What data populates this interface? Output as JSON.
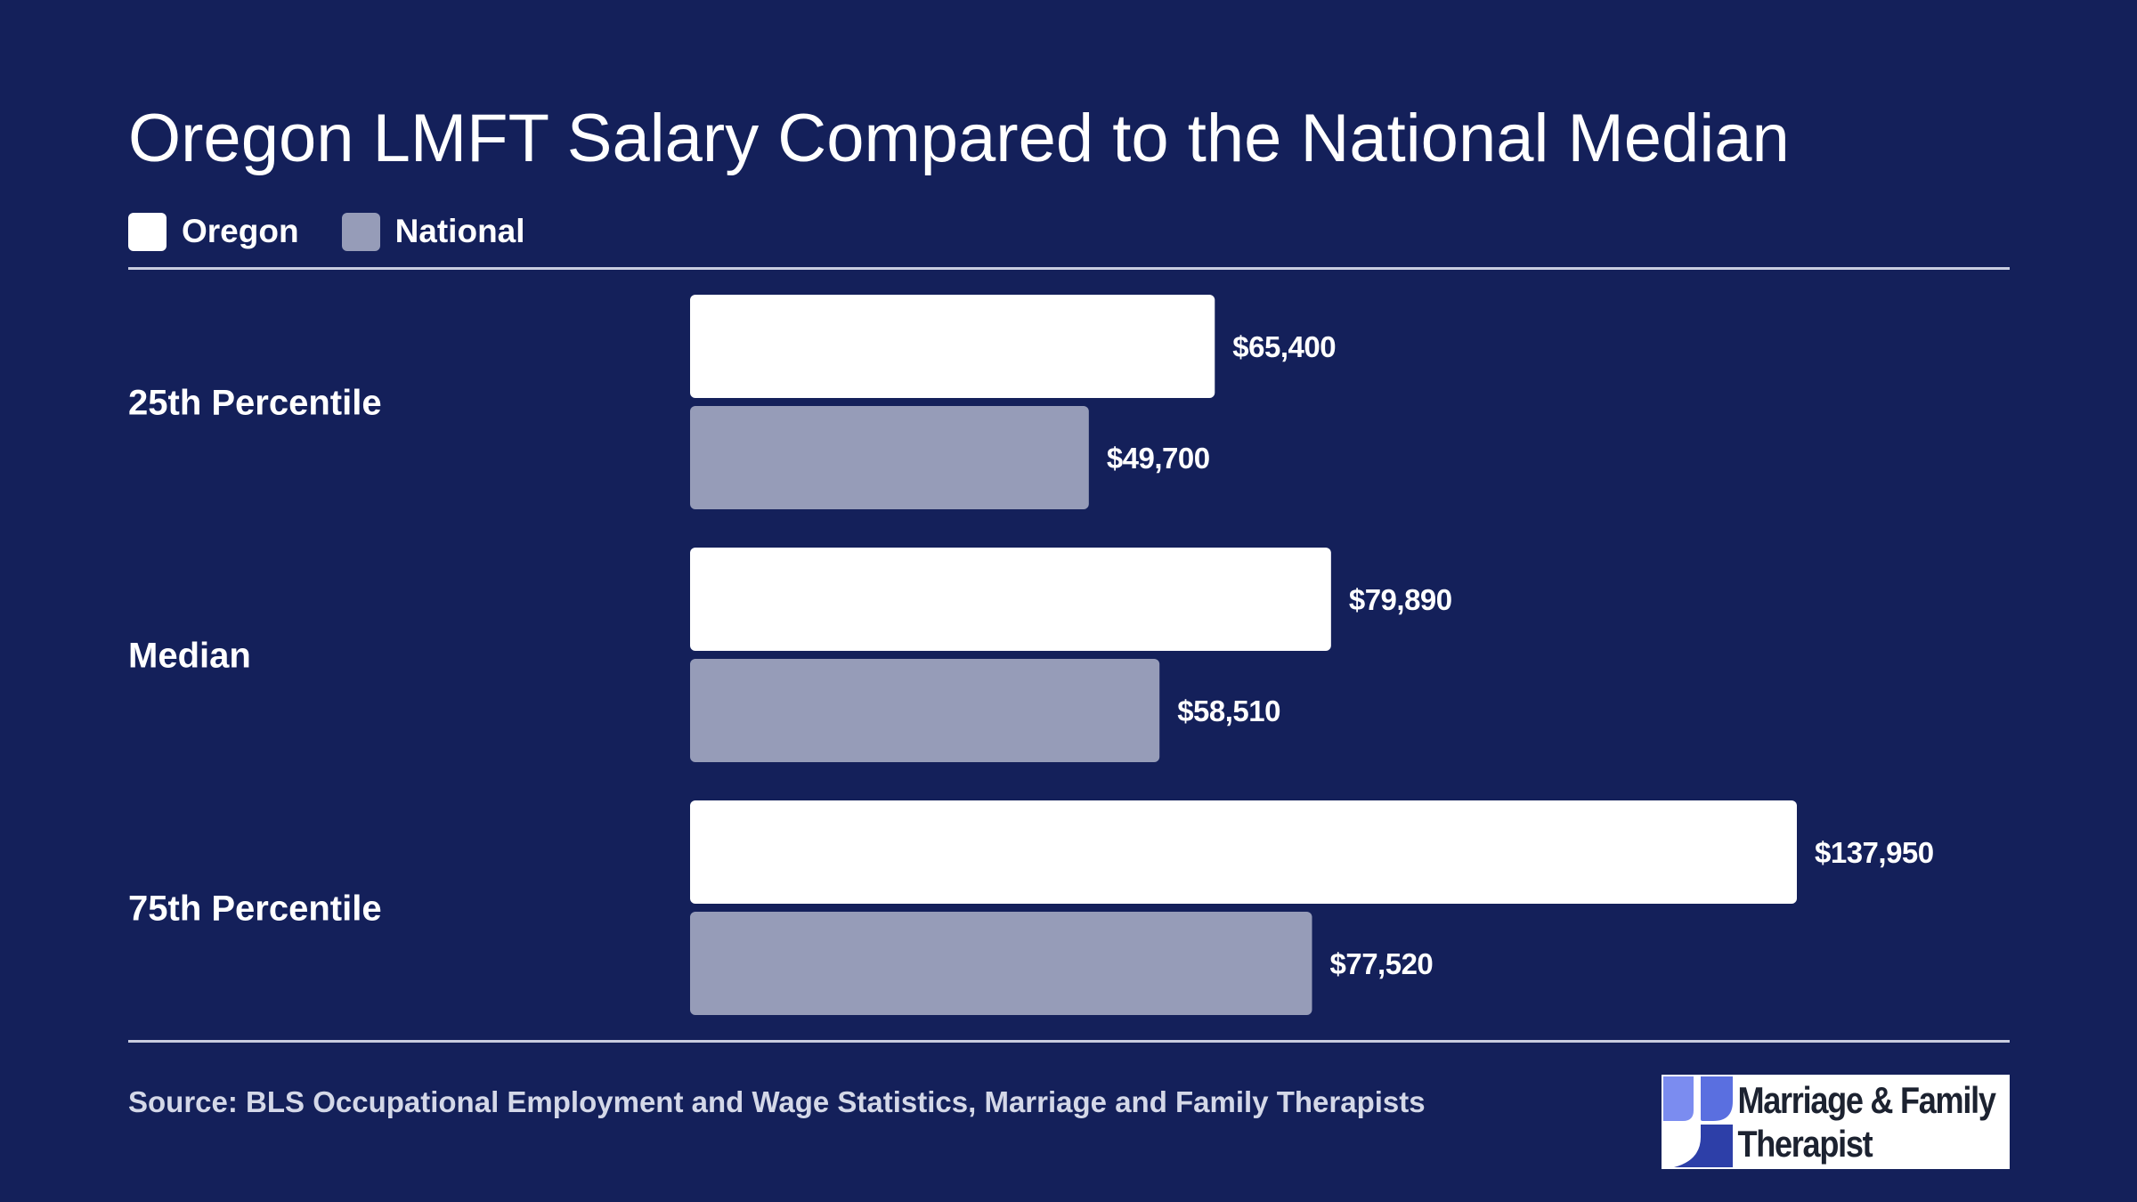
{
  "colors": {
    "background": "#14205a",
    "oregon": "#ffffff",
    "national": "#969cb8",
    "text": "#ffffff",
    "source_text": "#d4d8e8"
  },
  "chart_data": {
    "type": "bar",
    "orientation": "horizontal",
    "title": "Oregon LMFT Salary Compared to the National Median",
    "categories": [
      "25th Percentile",
      "Median",
      "75th Percentile"
    ],
    "series": [
      {
        "name": "Oregon",
        "values": [
          65400,
          79890,
          137950
        ],
        "labels": [
          "$65,400",
          "$79,890",
          "$137,950"
        ],
        "color": "#ffffff"
      },
      {
        "name": "National",
        "values": [
          49700,
          58510,
          77520
        ],
        "labels": [
          "$49,700",
          "$58,510",
          "$77,520"
        ],
        "color": "#969cb8"
      }
    ],
    "xlim": [
      0,
      150000
    ],
    "legend": "top-left",
    "grid": false,
    "xlabel": "",
    "ylabel": ""
  },
  "footer": {
    "source": "Source: BLS Occupational Employment and Wage Statistics, Marriage and Family Therapists"
  },
  "logo": {
    "line1": "Marriage & Family",
    "line2": "Therapist",
    "icon": "puzzle-logo-icon"
  }
}
